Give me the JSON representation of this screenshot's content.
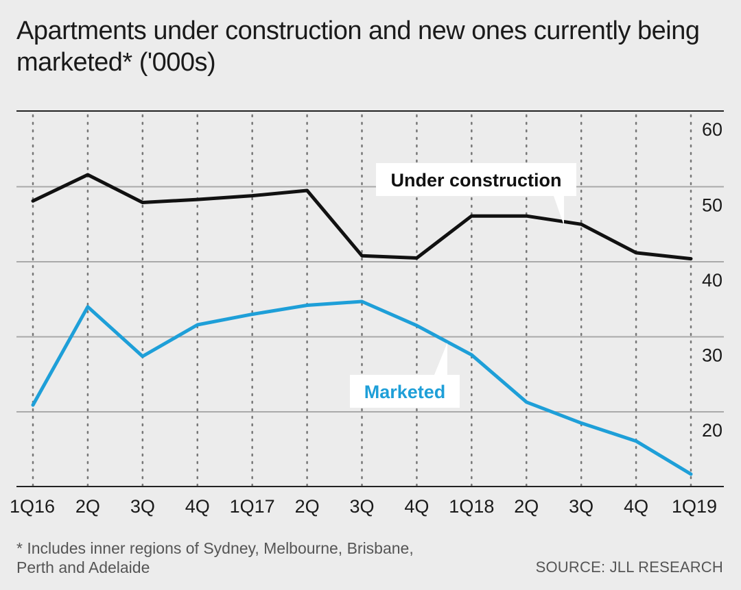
{
  "title": "Apartments under construction and new ones currently being marketed* ('000s)",
  "footnote": "* Includes inner regions of Sydney, Melbourne, Brisbane, Perth and Adelaide",
  "source": "SOURCE: JLL RESEARCH",
  "chart_data": {
    "type": "line",
    "categories": [
      "1Q16",
      "2Q",
      "3Q",
      "4Q",
      "1Q17",
      "2Q",
      "3Q",
      "4Q",
      "1Q18",
      "2Q",
      "3Q",
      "4Q",
      "1Q19"
    ],
    "series": [
      {
        "name": "Under construction",
        "color": "#111111",
        "values": [
          48.1,
          51.6,
          47.9,
          48.3,
          48.8,
          49.5,
          40.8,
          40.5,
          46.1,
          46.1,
          45.0,
          41.2,
          40.4
        ]
      },
      {
        "name": "Marketed",
        "color": "#1e9fd8",
        "values": [
          20.9,
          34.0,
          27.4,
          31.6,
          33.0,
          34.2,
          34.7,
          31.5,
          27.6,
          21.3,
          18.5,
          16.1,
          11.7
        ]
      }
    ],
    "yticks": [
      20,
      30,
      40,
      50,
      60
    ],
    "ylim": [
      10,
      62
    ],
    "y_axis_position": "right",
    "grid": true,
    "legend": "inline labels"
  }
}
